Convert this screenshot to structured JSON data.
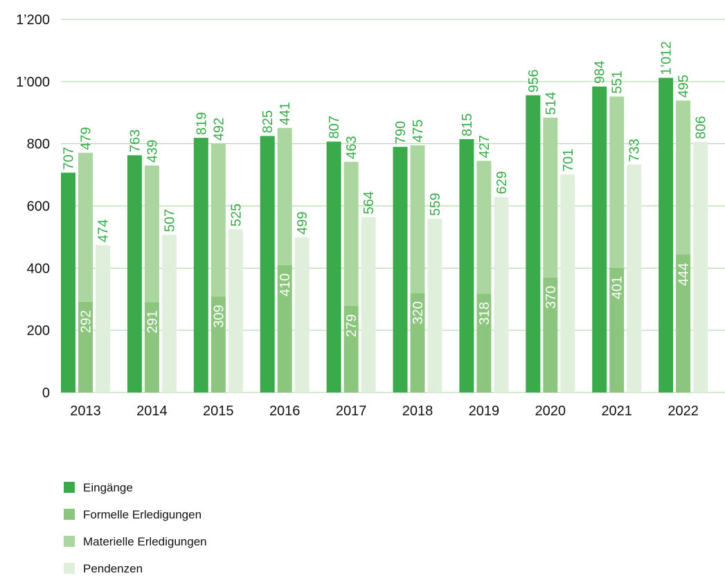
{
  "chart_data": {
    "type": "grouped_stacked_bar",
    "categories": [
      "2013",
      "2014",
      "2015",
      "2016",
      "2017",
      "2018",
      "2019",
      "2020",
      "2021",
      "2022"
    ],
    "series": [
      {
        "name": "Eingänge",
        "color": "#3aaa4a",
        "stack": "a",
        "values": [
          707,
          763,
          819,
          825,
          807,
          790,
          815,
          956,
          984,
          1012
        ],
        "value_labels": [
          "707",
          "763",
          "819",
          "825",
          "807",
          "790",
          "815",
          "956",
          "984",
          "1’012"
        ]
      },
      {
        "name": "Formelle Erledigungen",
        "color": "#8cc57e",
        "stack": "b",
        "values": [
          292,
          291,
          309,
          410,
          279,
          320,
          318,
          370,
          401,
          444
        ]
      },
      {
        "name": "Materielle Erledigungen",
        "color": "#acd6a0",
        "stack": "b",
        "values": [
          479,
          439,
          492,
          441,
          463,
          475,
          427,
          514,
          551,
          495
        ]
      },
      {
        "name": "Pendenzen",
        "color": "#e0efdb",
        "stack": "c",
        "values": [
          474,
          507,
          525,
          499,
          564,
          559,
          629,
          701,
          733,
          806
        ]
      }
    ],
    "ylim": [
      0,
      1200
    ],
    "yticks": [
      0,
      200,
      400,
      600,
      800,
      {
        "value": 1000,
        "label": "1’000"
      },
      {
        "value": 1200,
        "label": "1’200"
      }
    ],
    "grid": true
  }
}
